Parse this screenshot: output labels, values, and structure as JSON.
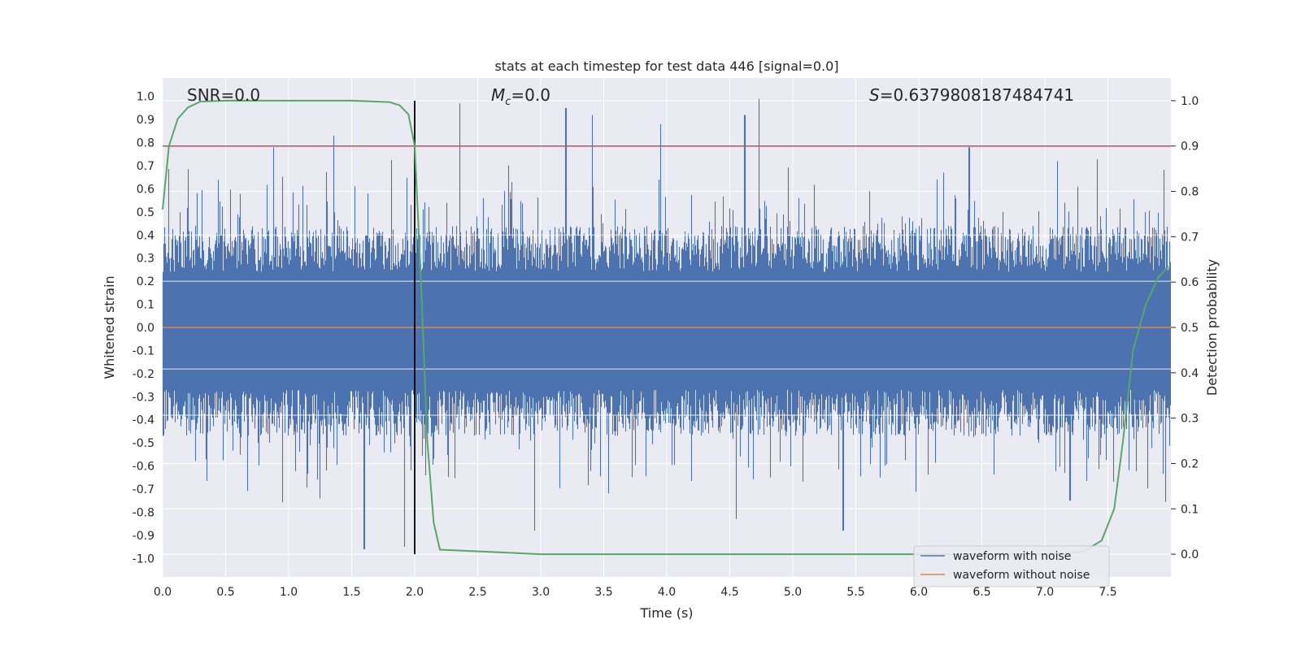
{
  "chart_data": {
    "type": "line",
    "title": "stats at each timestep for test data 446 [signal=0.0]",
    "xlabel": "Time (s)",
    "ylabel_left": "Whitened strain",
    "ylabel_right": "Detection probability",
    "xlim": [
      0.0,
      8.0
    ],
    "ylim_left": [
      -1.08,
      1.08
    ],
    "ylim_right": [
      -0.05,
      1.05
    ],
    "x_ticks": [
      "0.0",
      "0.5",
      "1.0",
      "1.5",
      "2.0",
      "2.5",
      "3.0",
      "3.5",
      "4.0",
      "4.5",
      "5.0",
      "5.5",
      "6.0",
      "6.5",
      "7.0",
      "7.5"
    ],
    "y_left_ticks": [
      "1.0",
      "0.9",
      "0.8",
      "0.7",
      "0.6",
      "0.5",
      "0.4",
      "0.3",
      "0.2",
      "0.1",
      "0.0",
      "-0.1",
      "-0.2",
      "-0.3",
      "-0.4",
      "-0.5",
      "-0.6",
      "-0.7",
      "-0.8",
      "-0.9",
      "-1.0"
    ],
    "y_right_ticks": [
      "1.0",
      "0.9",
      "0.8",
      "0.7",
      "0.6",
      "0.5",
      "0.4",
      "0.3",
      "0.2",
      "0.1",
      "0.0"
    ],
    "grid": true,
    "legend_position": "bottom-right",
    "annotations": {
      "snr": "SNR=0.0",
      "mc_symbol": "M",
      "mc_sub": "c",
      "mc_value": "=0.0",
      "s_symbol": "S",
      "s_value": "=0.6379808187484741"
    },
    "threshold_right": 0.9,
    "vline_time": 2.0,
    "series": [
      {
        "name": "waveform with noise",
        "color": "#4c72b0",
        "envelope_upper_typical": 0.45,
        "envelope_lower_typical": -0.45,
        "peaks_upper": [
          [
            0.88,
            0.78
          ],
          [
            1.36,
            0.83
          ],
          [
            2.36,
            0.97
          ],
          [
            3.2,
            0.95
          ],
          [
            3.41,
            0.92
          ],
          [
            3.95,
            0.88
          ],
          [
            4.62,
            0.92
          ],
          [
            4.73,
            0.99
          ],
          [
            6.4,
            0.78
          ],
          [
            7.1,
            0.72
          ]
        ],
        "peaks_lower": [
          [
            1.6,
            -0.96
          ],
          [
            1.92,
            -0.95
          ],
          [
            2.95,
            -0.88
          ],
          [
            4.55,
            -0.83
          ],
          [
            5.4,
            -0.88
          ],
          [
            7.2,
            -0.75
          ]
        ]
      },
      {
        "name": "waveform without noise",
        "color": "#dd8452",
        "values_const": 0.0
      },
      {
        "name": "detection probability",
        "color": "#55a868",
        "x": [
          0.0,
          0.05,
          0.12,
          0.2,
          0.3,
          0.5,
          1.0,
          1.5,
          1.8,
          1.88,
          1.95,
          2.0,
          2.05,
          2.1,
          2.15,
          2.2,
          3.0,
          5.0,
          7.0,
          7.3,
          7.45,
          7.55,
          7.62,
          7.7,
          7.8,
          7.9,
          7.98
        ],
        "values": [
          0.76,
          0.9,
          0.96,
          0.985,
          0.998,
          1.0,
          1.0,
          1.0,
          0.997,
          0.99,
          0.97,
          0.9,
          0.6,
          0.25,
          0.07,
          0.01,
          0.0,
          0.0,
          0.0,
          0.005,
          0.03,
          0.1,
          0.25,
          0.45,
          0.55,
          0.61,
          0.635
        ]
      }
    ],
    "colors": {
      "plot_bg": "#eaeaf2",
      "grid": "#ffffff",
      "threshold": "#c44e52",
      "vline": "#000000"
    }
  }
}
